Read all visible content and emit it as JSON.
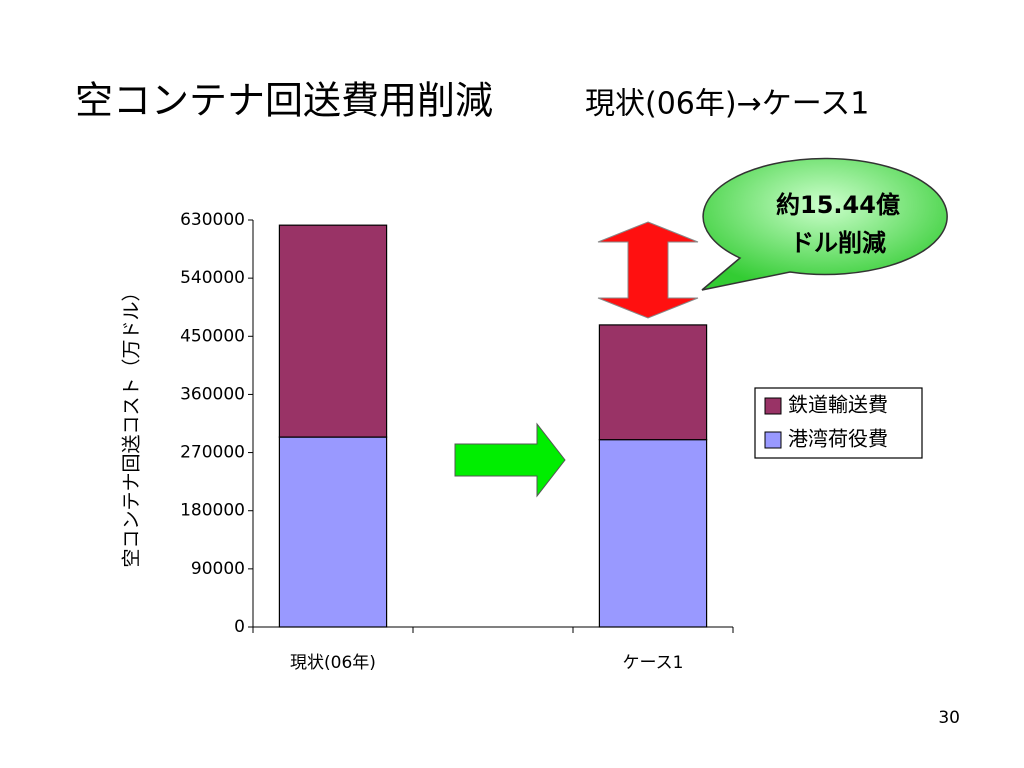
{
  "chart_data": {
    "type": "stacked-bar",
    "title": "空コンテナ回送費用削減",
    "subtitle": "現状(06年)→ケース1",
    "y_label": "空コンテナ回送コスト（万ドル）",
    "categories": [
      "現状(06年)",
      null,
      "ケース1"
    ],
    "series": [
      {
        "name": "港湾荷役費",
        "color": "#9999ff",
        "values": [
          294000,
          null,
          290000
        ]
      },
      {
        "name": "鉄道輸送費",
        "color": "#993366",
        "values": [
          328000,
          null,
          177600
        ]
      }
    ],
    "ylim": [
      0,
      630000
    ],
    "yticks": [
      0,
      90000,
      180000,
      270000,
      360000,
      450000,
      540000,
      630000
    ],
    "annotation": [
      "約15.44億",
      "ドル削減"
    ],
    "page_number": "30"
  }
}
